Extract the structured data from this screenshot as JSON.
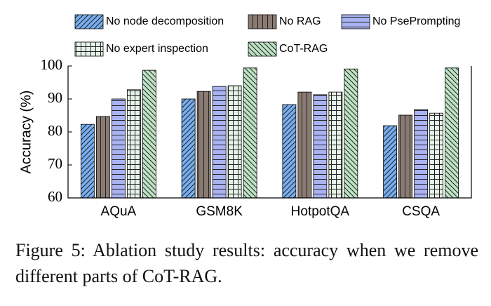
{
  "chart_data": {
    "type": "bar",
    "y_label": "Accuracy (%)",
    "categories": [
      "AQuA",
      "GSM8K",
      "HotpotQA",
      "CSQA"
    ],
    "series": [
      {
        "name": "No node decomposition",
        "color": "#78aef0",
        "values": [
          82.3,
          90.0,
          88.3,
          81.9
        ]
      },
      {
        "name": "No RAG",
        "color": "#8a7b72",
        "values": [
          84.7,
          92.3,
          92.1,
          85.1
        ]
      },
      {
        "name": "No PsePrompting",
        "color": "#aab3f2",
        "values": [
          90.0,
          93.8,
          91.3,
          86.8
        ]
      },
      {
        "name": "No expert inspection",
        "color": "#e6f3e8",
        "values": [
          92.8,
          94.0,
          92.1,
          85.7
        ]
      },
      {
        "name": "CoT-RAG",
        "color": "#bde3c4",
        "values": [
          98.7,
          99.4,
          99.1,
          99.4
        ]
      }
    ],
    "ylim": [
      60,
      100
    ],
    "yticks": [
      60,
      70,
      80,
      90,
      100
    ]
  },
  "caption": "Figure 5: Ablation study results: accuracy when we remove different parts of CoT-RAG."
}
